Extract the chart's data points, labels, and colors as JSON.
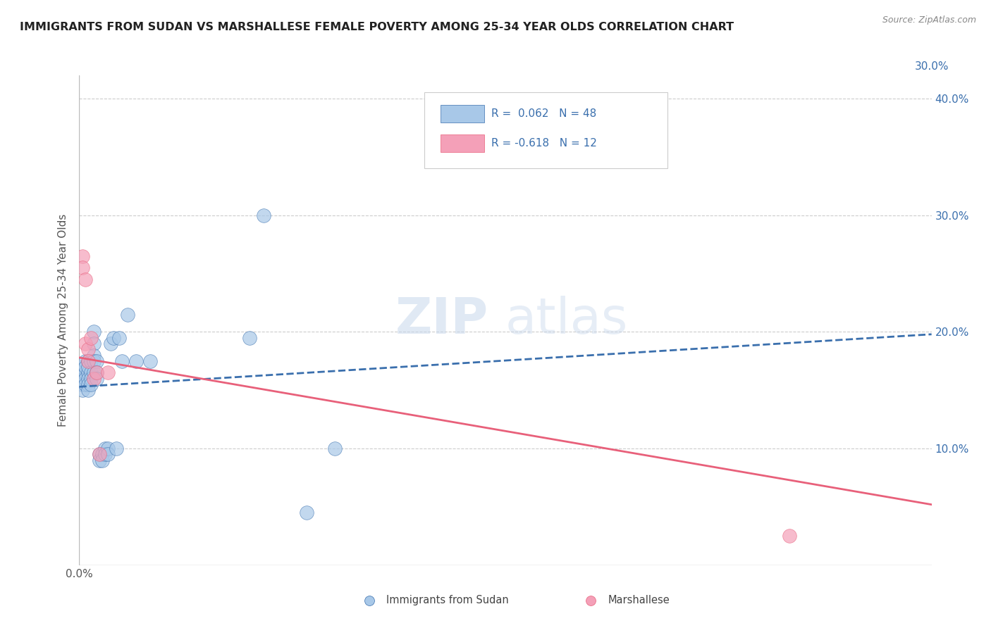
{
  "title": "IMMIGRANTS FROM SUDAN VS MARSHALLESE FEMALE POVERTY AMONG 25-34 YEAR OLDS CORRELATION CHART",
  "source": "Source: ZipAtlas.com",
  "ylabel": "Female Poverty Among 25-34 Year Olds",
  "x_min": 0.0,
  "x_max": 0.3,
  "y_min": 0.0,
  "y_max": 0.42,
  "legend_R1": "0.062",
  "legend_N1": "48",
  "legend_R2": "-0.618",
  "legend_N2": "12",
  "blue_color": "#a8c8e8",
  "pink_color": "#f4a0b8",
  "blue_line_color": "#3a6fad",
  "pink_line_color": "#e8607a",
  "watermark": "ZIPatlas",
  "sudan_x": [
    0.001,
    0.001,
    0.001,
    0.001,
    0.001,
    0.002,
    0.002,
    0.002,
    0.002,
    0.002,
    0.003,
    0.003,
    0.003,
    0.003,
    0.003,
    0.003,
    0.004,
    0.004,
    0.004,
    0.004,
    0.005,
    0.005,
    0.005,
    0.005,
    0.005,
    0.006,
    0.006,
    0.006,
    0.007,
    0.007,
    0.008,
    0.008,
    0.009,
    0.009,
    0.01,
    0.01,
    0.011,
    0.012,
    0.013,
    0.014,
    0.015,
    0.017,
    0.02,
    0.025,
    0.06,
    0.065,
    0.08,
    0.09
  ],
  "sudan_y": [
    0.165,
    0.16,
    0.17,
    0.155,
    0.15,
    0.175,
    0.165,
    0.16,
    0.17,
    0.155,
    0.175,
    0.165,
    0.16,
    0.17,
    0.155,
    0.15,
    0.175,
    0.165,
    0.16,
    0.155,
    0.2,
    0.19,
    0.18,
    0.175,
    0.165,
    0.175,
    0.165,
    0.16,
    0.095,
    0.09,
    0.095,
    0.09,
    0.1,
    0.095,
    0.1,
    0.095,
    0.19,
    0.195,
    0.1,
    0.195,
    0.175,
    0.215,
    0.175,
    0.175,
    0.195,
    0.3,
    0.045,
    0.1
  ],
  "marshallese_x": [
    0.001,
    0.001,
    0.002,
    0.002,
    0.003,
    0.003,
    0.004,
    0.005,
    0.006,
    0.007,
    0.01,
    0.25
  ],
  "marshallese_y": [
    0.265,
    0.255,
    0.245,
    0.19,
    0.185,
    0.175,
    0.195,
    0.16,
    0.165,
    0.095,
    0.165,
    0.025
  ],
  "blue_line_y0": 0.153,
  "blue_line_y1": 0.198,
  "pink_line_y0": 0.178,
  "pink_line_y1": 0.052
}
